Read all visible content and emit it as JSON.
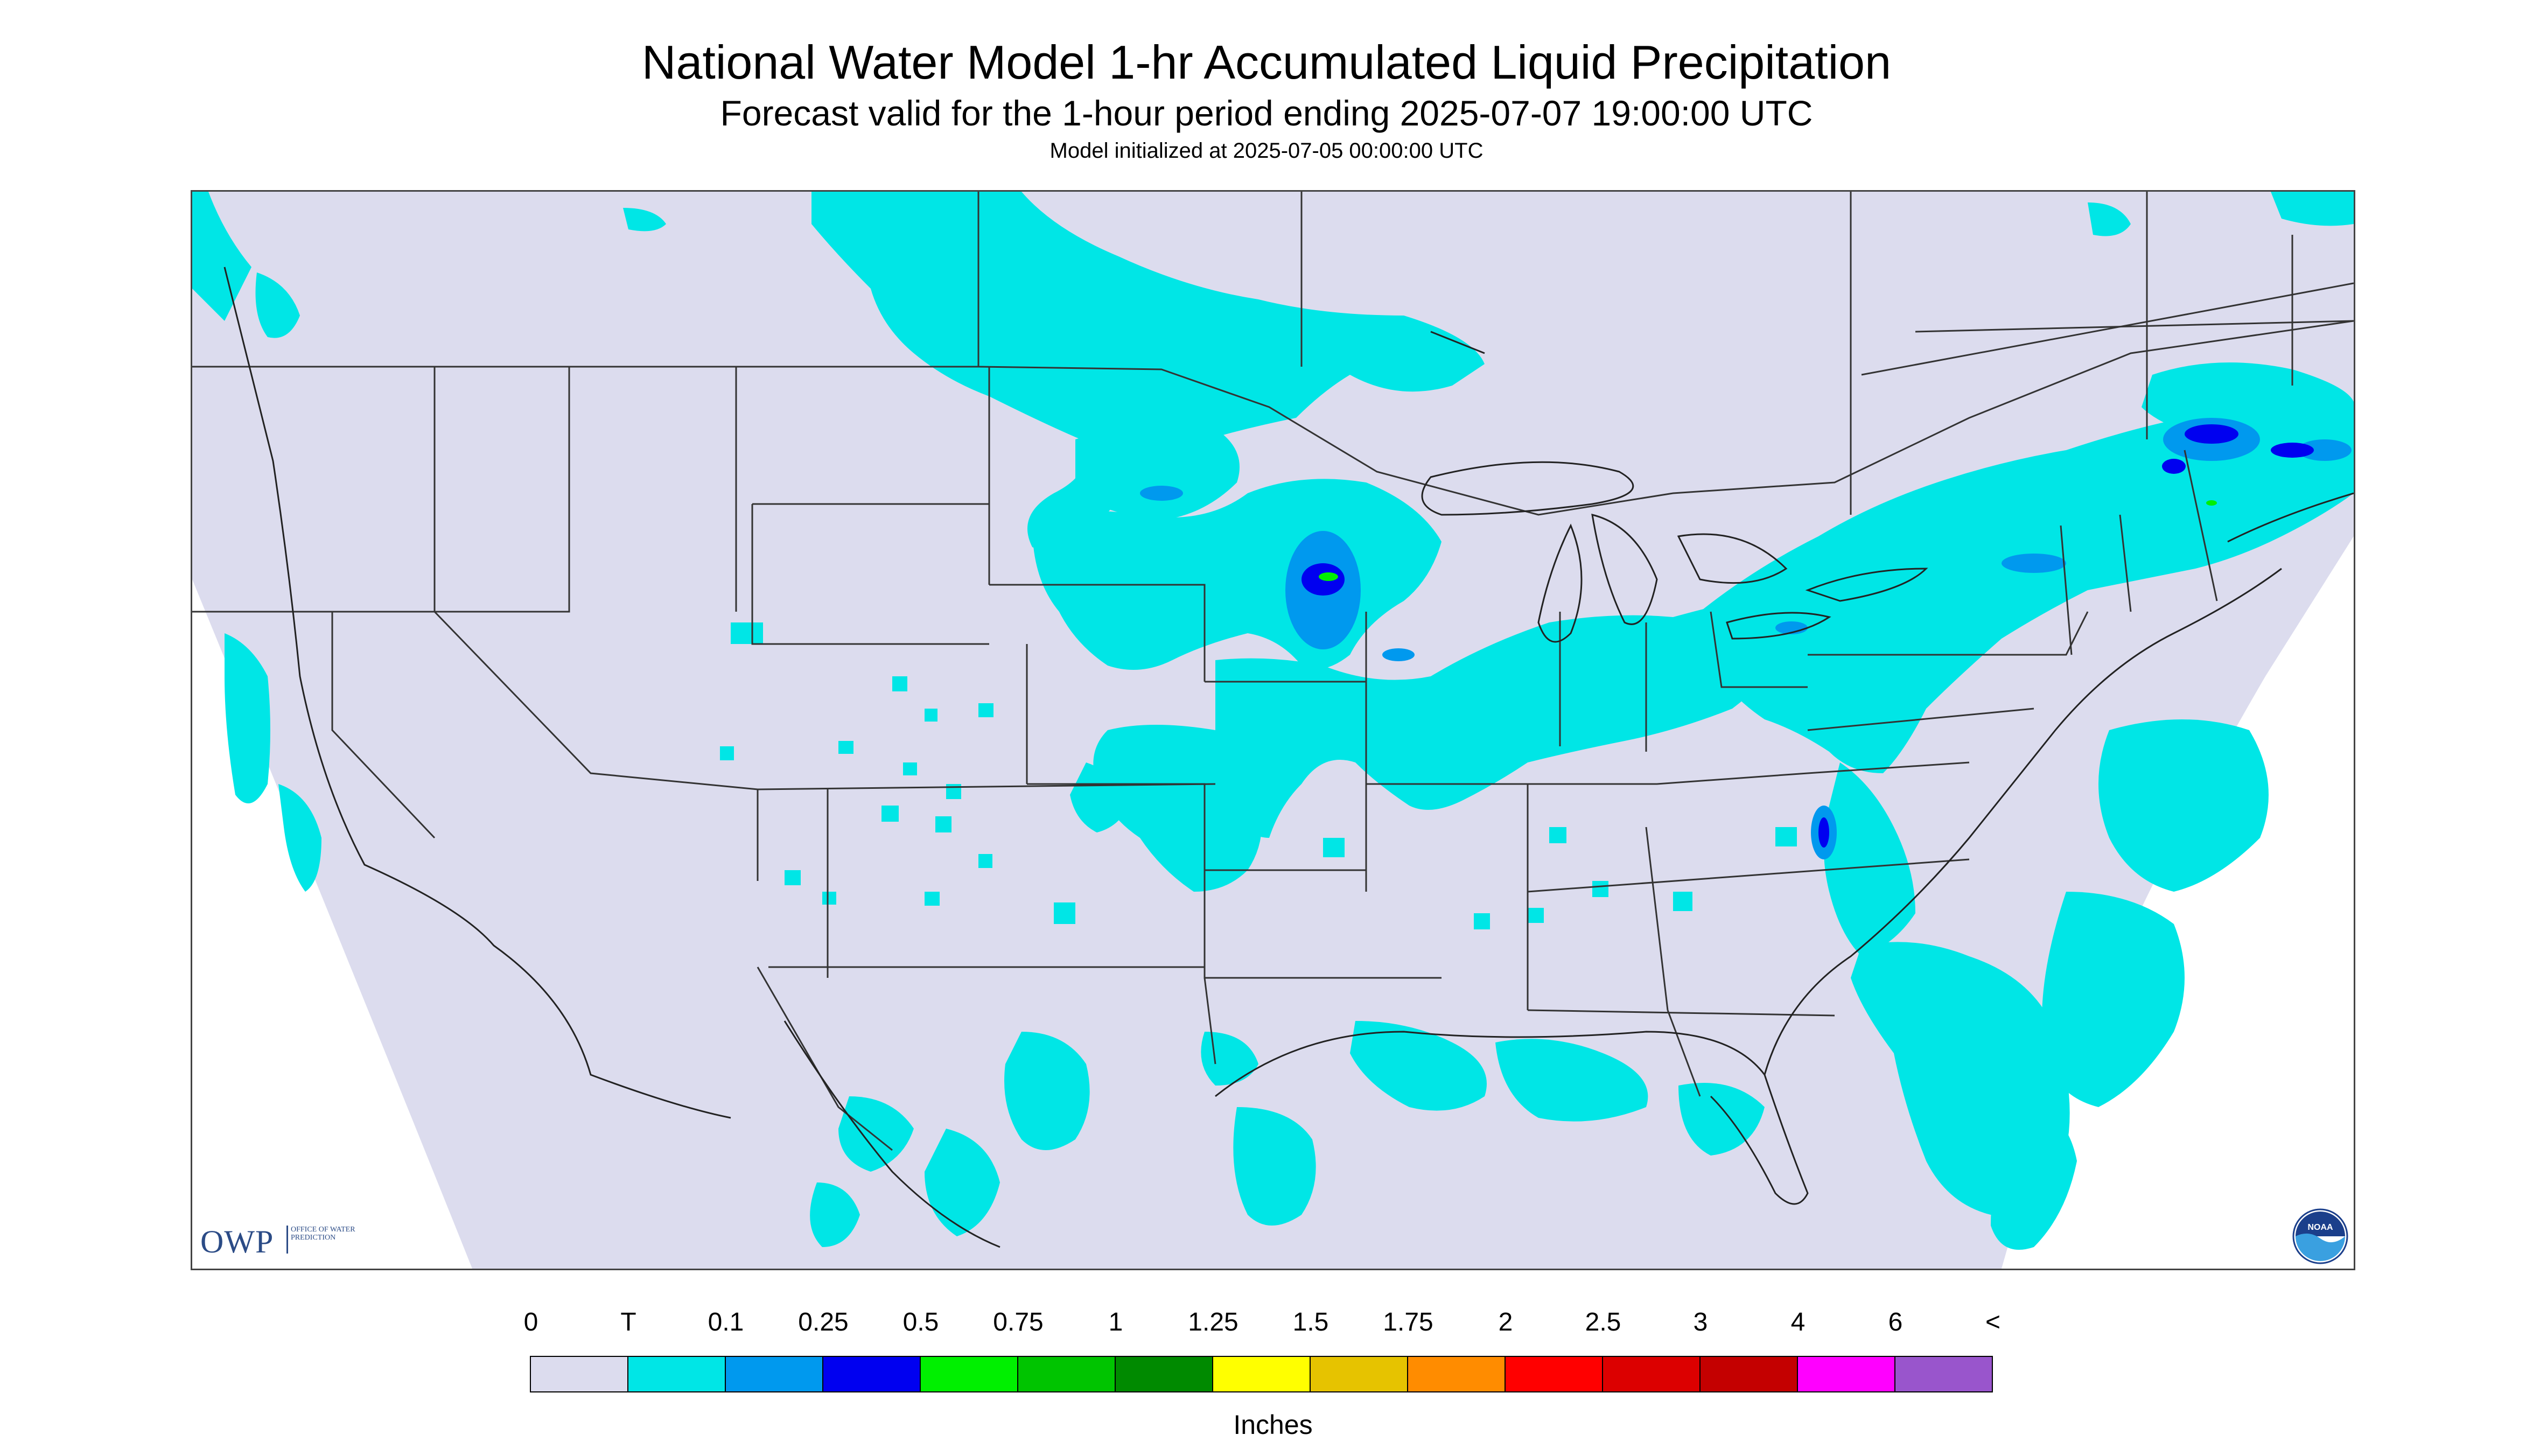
{
  "title": "National Water Model 1-hr Accumulated Liquid Precipitation",
  "subtitle": "Forecast valid for the 1-hour period ending 2025-07-07 19:00:00 UTC",
  "initialized": "Model initialized at 2025-07-05 00:00:00 UTC",
  "legend": {
    "ticks": [
      "0",
      "T",
      "0.1",
      "0.25",
      "0.5",
      "0.75",
      "1",
      "1.25",
      "1.5",
      "1.75",
      "2",
      "2.5",
      "3",
      "4",
      "6",
      "<"
    ],
    "colors": [
      "#dcdcee",
      "#00e6e6",
      "#0099ee",
      "#0000f0",
      "#00f000",
      "#00c400",
      "#008a00",
      "#ffff00",
      "#e6c300",
      "#ff8c00",
      "#ff0000",
      "#dc0000",
      "#c40000",
      "#ff00ff",
      "#9955cc"
    ],
    "units": "Inches"
  },
  "logos": {
    "owp_mark": "OWP",
    "owp_text": "OFFICE OF WATER PREDICTION",
    "noaa_text": "NOAA"
  },
  "map_colors": {
    "domain": "#dcdcee",
    "outside": "#ffffff",
    "trace": "#00e6e6",
    "light": "#0099ee",
    "medium": "#0000f0",
    "heavy": "#00f000",
    "borders": "#333333"
  },
  "icons": [
    "owp-logo",
    "noaa-logo"
  ]
}
